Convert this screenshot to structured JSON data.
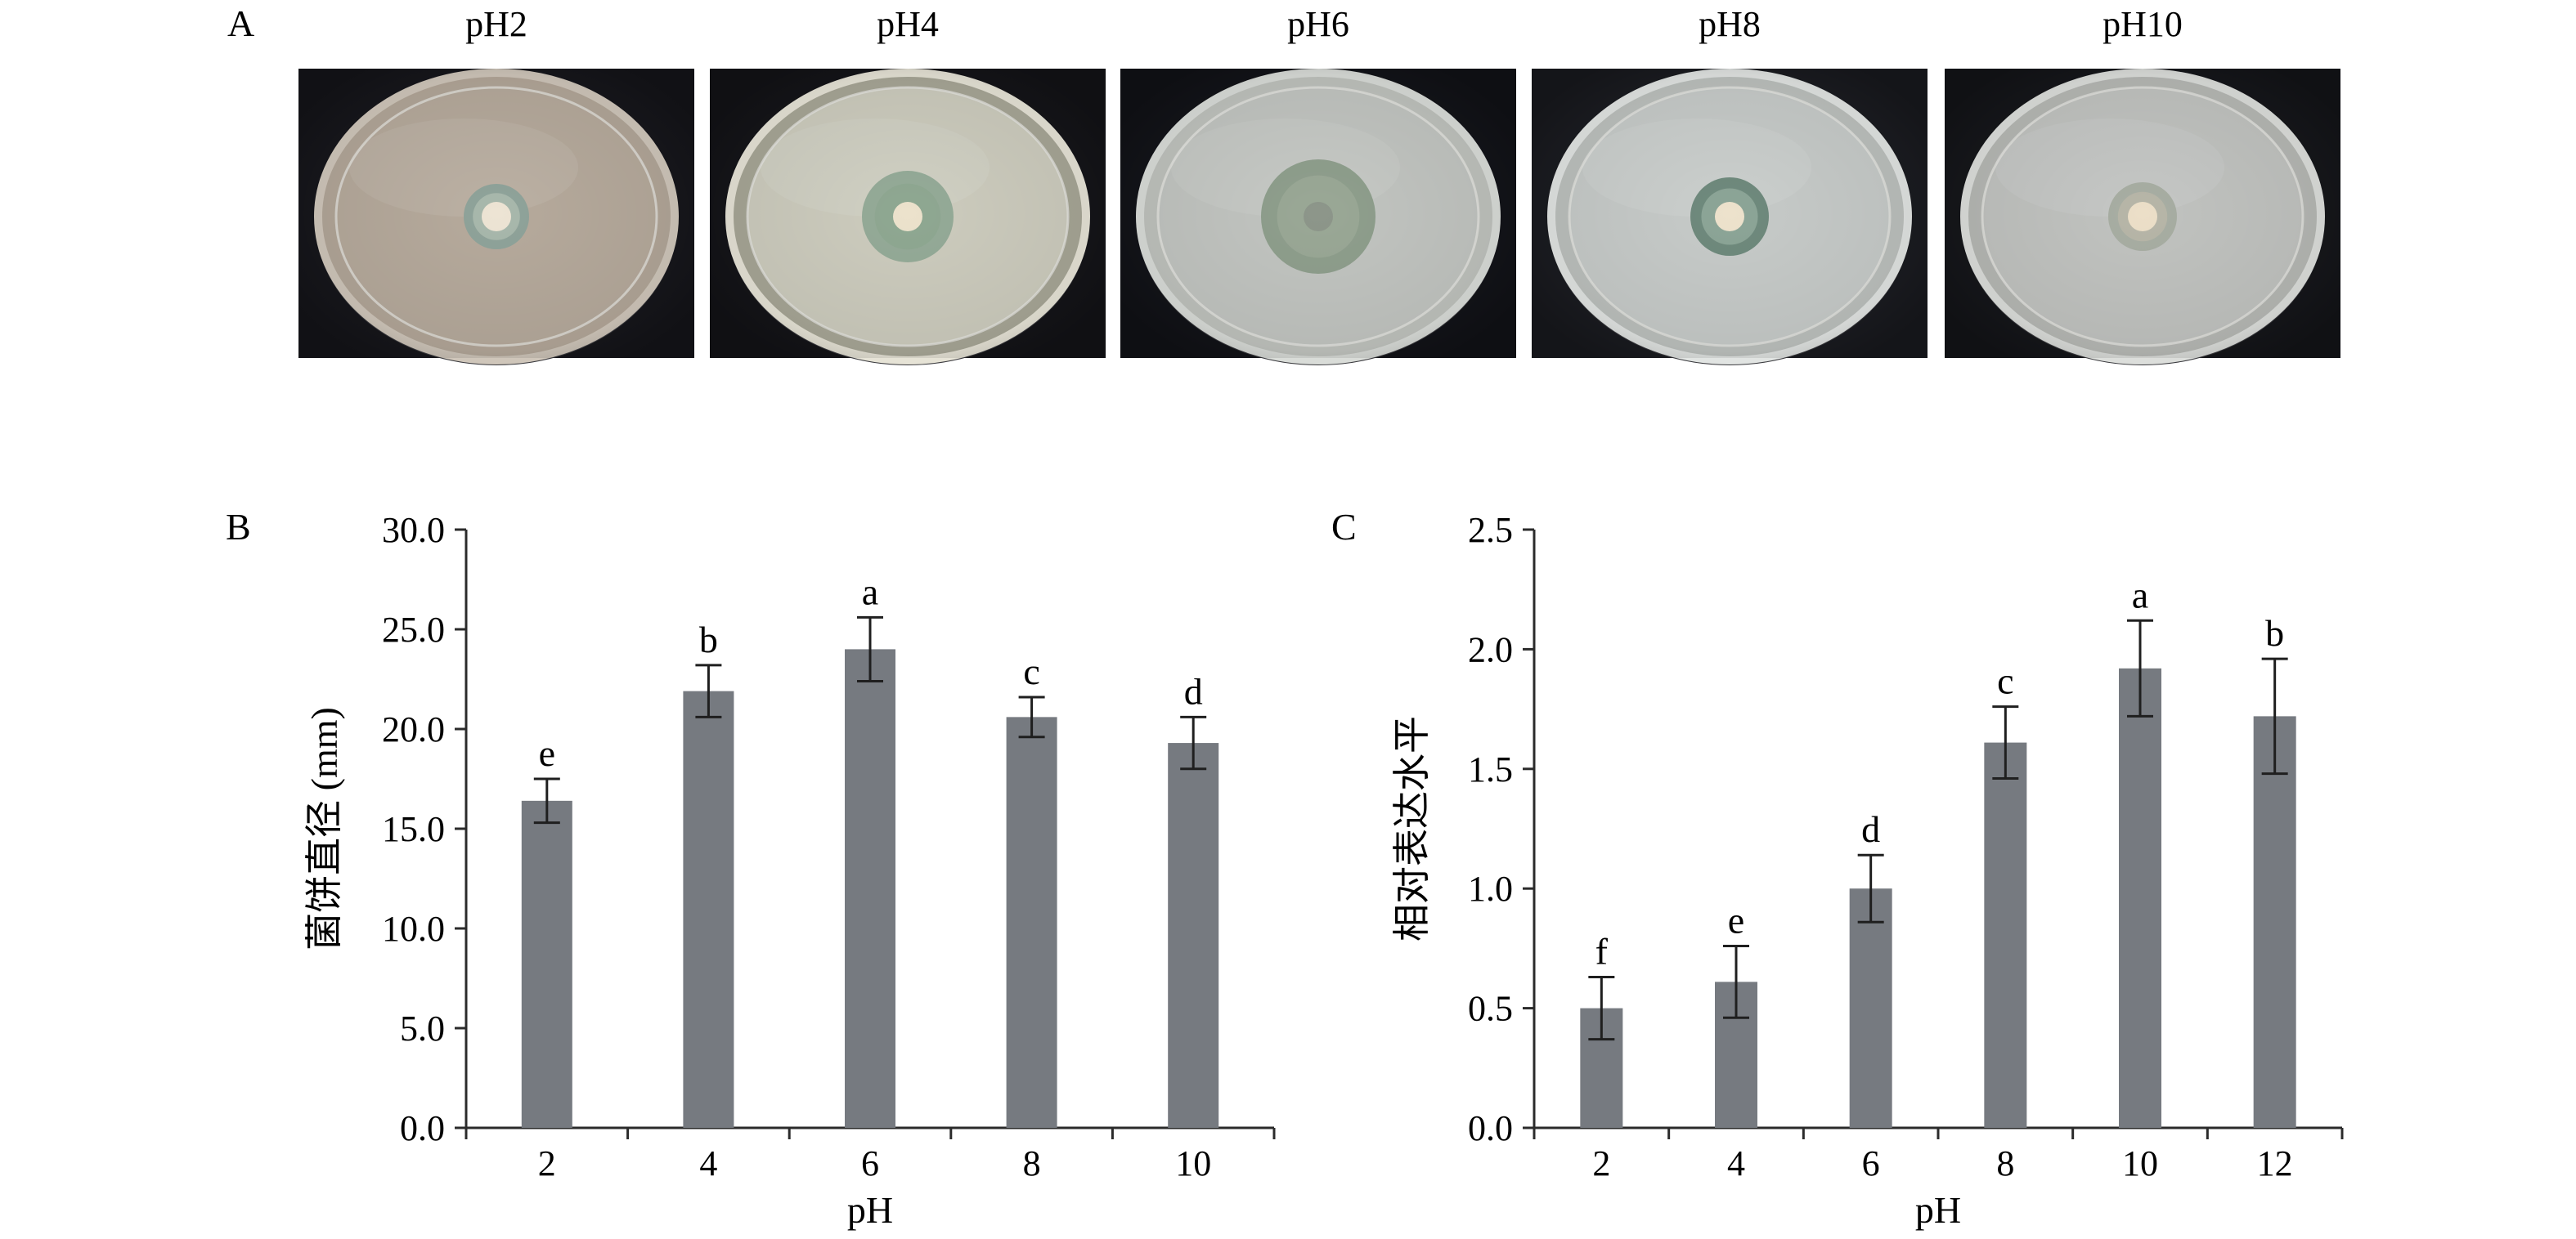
{
  "panel_a": {
    "letter": "A",
    "plates": [
      {
        "label": "pH2",
        "medium": "#b6aa9c",
        "plate_bg": "#b2a698",
        "halo": "#8fa39a",
        "colony": "#a8b8ac",
        "plug": "#ede4d4",
        "dish_edge": "#cfc6ba",
        "background": "#16161b"
      },
      {
        "label": "pH4",
        "medium": "#cdccbe",
        "plate_bg": "#a7a696",
        "halo": "#95ab98",
        "colony": "#8fa892",
        "plug": "#ece2cc",
        "dish_edge": "#e6e3d6",
        "background": "#141418"
      },
      {
        "label": "pH6",
        "medium": "#c2c5c1",
        "plate_bg": "#bfc2bd",
        "halo": "#8f9f8d",
        "colony": "#9aa896",
        "plug": "#8d968a",
        "dish_edge": "#d9dcd8",
        "background": "#121318"
      },
      {
        "label": "pH8",
        "medium": "#c7cbc9",
        "plate_bg": "#bcc0bd",
        "halo": "#6f8a7d",
        "colony": "#8ca597",
        "plug": "#ede2cc",
        "dish_edge": "#e1e4e2",
        "background": "#1a1b20"
      },
      {
        "label": "pH10",
        "medium": "#c1c3c0",
        "plate_bg": "#b6b8b4",
        "halo": "#a8aea3",
        "colony": "#b7b6a8",
        "plug": "#ecdfc8",
        "dish_edge": "#dcdedb",
        "background": "#15161a"
      }
    ]
  },
  "chart_data": [
    {
      "panel": "B",
      "type": "bar",
      "categories": [
        "2",
        "4",
        "6",
        "8",
        "10"
      ],
      "values": [
        16.4,
        21.9,
        24.0,
        20.6,
        19.3
      ],
      "errors": [
        1.1,
        1.3,
        1.6,
        1.0,
        1.3
      ],
      "significance": [
        "e",
        "b",
        "a",
        "c",
        "d"
      ],
      "xlabel": "pH",
      "ylabel": "菌饼直径 (mm)",
      "ylim": [
        0,
        30
      ],
      "yticks": [
        "0.0",
        "5.0",
        "10.0",
        "15.0",
        "20.0",
        "25.0",
        "30.0"
      ],
      "bar_color": "#767a80",
      "grid": false
    },
    {
      "panel": "C",
      "type": "bar",
      "categories": [
        "2",
        "4",
        "6",
        "8",
        "10",
        "12"
      ],
      "values": [
        0.5,
        0.61,
        1.0,
        1.61,
        1.92,
        1.72
      ],
      "errors": [
        0.13,
        0.15,
        0.14,
        0.15,
        0.2,
        0.24
      ],
      "significance": [
        "f",
        "e",
        "d",
        "c",
        "a",
        "b"
      ],
      "xlabel": "pH",
      "ylabel": "相对表达水平",
      "ylim": [
        0,
        2.5
      ],
      "yticks": [
        "0.0",
        "0.5",
        "1.0",
        "1.5",
        "2.0",
        "2.5"
      ],
      "bar_color": "#767a80",
      "grid": false
    }
  ]
}
